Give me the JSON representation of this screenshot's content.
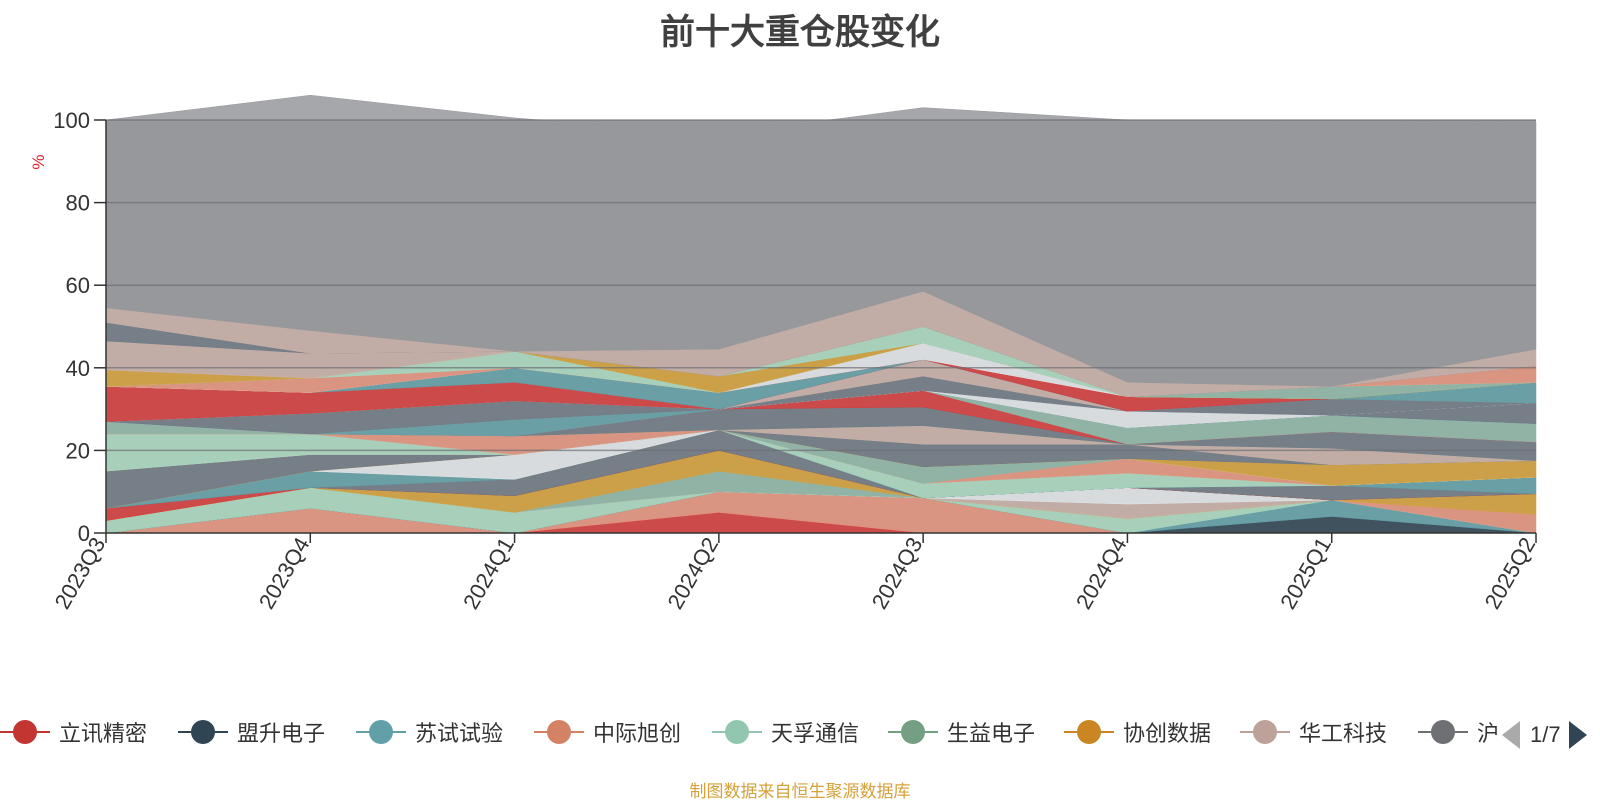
{
  "chart_data": {
    "type": "area",
    "stacked": true,
    "title": "前十大重仓股变化",
    "ylabel": "%",
    "ylim": [
      0,
      100
    ],
    "yticks": [
      0,
      20,
      40,
      60,
      80,
      100
    ],
    "grid": true,
    "categories": [
      "2023Q3",
      "2023Q4",
      "2024Q1",
      "2024Q2",
      "2024Q3",
      "2024Q4",
      "2025Q1",
      "2025Q2"
    ],
    "layers": [
      {
        "color": "#d63c3c",
        "values": [
          0,
          0,
          0,
          5,
          0,
          0,
          0,
          0
        ]
      },
      {
        "color": "#e4947c",
        "values": [
          0,
          6,
          0,
          5,
          8.5,
          0,
          0,
          0
        ]
      },
      {
        "color": "#2f4554",
        "values": [
          0,
          0,
          0,
          0,
          0,
          0,
          4,
          0
        ]
      },
      {
        "color": "#61a0a8",
        "values": [
          0,
          0,
          0,
          0,
          0,
          0,
          4,
          0
        ]
      },
      {
        "color": "#a9d8c0",
        "values": [
          3,
          5,
          5,
          0,
          0,
          3.5,
          0,
          0
        ]
      },
      {
        "color": "#e4947c",
        "values": [
          0,
          0,
          0,
          0,
          0,
          0,
          0,
          4.5
        ]
      },
      {
        "color": "#d4a13a",
        "values": [
          0,
          0,
          0,
          0,
          0,
          0,
          0,
          5
        ]
      },
      {
        "color": "#c9b0a8",
        "values": [
          0,
          0,
          0,
          0,
          0,
          3.5,
          0,
          0
        ]
      },
      {
        "color": "#e2e6ea",
        "values": [
          0,
          0,
          0,
          0,
          0,
          4,
          0,
          0
        ]
      },
      {
        "color": "#8fb7a8",
        "values": [
          0,
          0,
          0,
          5,
          0,
          0,
          0,
          0
        ]
      },
      {
        "color": "#d4a13a",
        "values": [
          0,
          0,
          4,
          5,
          0,
          0,
          0,
          0
        ]
      },
      {
        "color": "#d63c3c",
        "values": [
          3,
          0,
          0,
          0,
          0,
          0,
          0,
          0
        ]
      },
      {
        "color": "#707a85",
        "values": [
          0,
          0,
          4,
          5,
          0,
          0,
          3.5,
          0
        ]
      },
      {
        "color": "#61a0a8",
        "values": [
          0,
          4,
          0,
          0,
          0,
          0,
          0,
          4
        ]
      },
      {
        "color": "#a9d8c0",
        "values": [
          0,
          0,
          0,
          0,
          3.5,
          3.5,
          0,
          0
        ]
      },
      {
        "color": "#e4947c",
        "values": [
          0,
          0,
          0,
          0,
          0,
          3.5,
          0,
          0
        ]
      },
      {
        "color": "#8fb7a8",
        "values": [
          0,
          0,
          0,
          0,
          4,
          0,
          0,
          0
        ]
      },
      {
        "color": "#e2e6ea",
        "values": [
          0,
          0,
          6,
          0,
          0,
          0,
          0,
          0
        ]
      },
      {
        "color": "#d4a13a",
        "values": [
          0,
          0,
          0,
          0,
          0,
          0,
          5,
          4
        ]
      },
      {
        "color": "#707a85",
        "values": [
          9,
          4,
          0,
          0,
          5.5,
          3.5,
          0,
          0
        ]
      },
      {
        "color": "#c9b0a8",
        "values": [
          0,
          0,
          0,
          0,
          4.5,
          0,
          4,
          0
        ]
      },
      {
        "color": "#a9d8c0",
        "values": [
          9,
          5,
          0,
          0,
          0,
          0,
          0,
          0
        ]
      },
      {
        "color": "#e4947c",
        "values": [
          0,
          0,
          4.5,
          0,
          0,
          0,
          0,
          0
        ]
      },
      {
        "color": "#8fb7a8",
        "values": [
          3,
          0,
          0,
          0,
          0,
          0,
          0,
          0
        ]
      },
      {
        "color": "#707a85",
        "values": [
          0,
          0,
          0,
          5,
          4.5,
          0,
          4,
          4.5
        ]
      },
      {
        "color": "#d63c3c",
        "values": [
          0,
          0,
          0,
          0,
          4,
          0,
          0,
          0
        ]
      },
      {
        "color": "#8fb7a8",
        "values": [
          0,
          0,
          0,
          0,
          0,
          4,
          4,
          4.5
        ]
      },
      {
        "color": "#61a0a8",
        "values": [
          0,
          0,
          4,
          0,
          0,
          0,
          0,
          0
        ]
      },
      {
        "color": "#707a85",
        "values": [
          0,
          0,
          0,
          0,
          0,
          0,
          0,
          5
        ]
      },
      {
        "color": "#e2e6ea",
        "values": [
          0,
          0,
          0,
          0,
          0,
          4,
          0,
          0
        ]
      },
      {
        "color": "#707a85",
        "values": [
          0,
          0,
          0,
          0,
          3.5,
          0,
          4,
          0
        ]
      },
      {
        "color": "#707a85",
        "values": [
          0,
          5,
          4.5,
          0,
          0,
          0,
          0,
          0
        ]
      },
      {
        "color": "#c9b0a8",
        "values": [
          0,
          0,
          0,
          0,
          4,
          0,
          0,
          0
        ]
      },
      {
        "color": "#d63c3c",
        "values": [
          8.5,
          5,
          4.5,
          0,
          0,
          0,
          0,
          0
        ]
      },
      {
        "color": "#61a0a8",
        "values": [
          0,
          0,
          3.5,
          4,
          0,
          0,
          0,
          0
        ]
      },
      {
        "color": "#61a0a8",
        "values": [
          0,
          0,
          0,
          0,
          0,
          0,
          0,
          5
        ]
      },
      {
        "color": "#d63c3c",
        "values": [
          0,
          0,
          0,
          0,
          0,
          3.5,
          0,
          0
        ]
      },
      {
        "color": "#e2e6ea",
        "values": [
          0,
          0,
          0,
          0,
          4,
          0,
          0,
          0
        ]
      },
      {
        "color": "#e4947c",
        "values": [
          0,
          3.5,
          0,
          0,
          0,
          0,
          0,
          0
        ]
      },
      {
        "color": "#a9d8c0",
        "values": [
          0,
          0,
          4,
          0,
          0,
          0,
          0,
          0
        ]
      },
      {
        "color": "#d4a13a",
        "values": [
          4,
          0,
          0,
          4,
          0,
          0,
          0,
          0
        ]
      },
      {
        "color": "#8fb7a8",
        "values": [
          0,
          0,
          0,
          0,
          0,
          0,
          3,
          0
        ]
      },
      {
        "color": "#a9d8c0",
        "values": [
          0,
          0,
          0,
          0,
          4,
          0,
          0,
          0
        ]
      },
      {
        "color": "#e4947c",
        "values": [
          0,
          0,
          0,
          0,
          0,
          0,
          0,
          4
        ]
      },
      {
        "color": "#c9b0a8",
        "values": [
          7,
          6,
          0,
          0,
          0,
          0,
          0,
          0
        ]
      },
      {
        "color": "#707a85",
        "values": [
          4.5,
          0,
          0,
          0,
          0,
          0,
          0,
          0
        ]
      },
      {
        "color": "#c9b0a8",
        "values": [
          3.5,
          5.5,
          0,
          6.5,
          8.5,
          3.5,
          0,
          4
        ]
      },
      {
        "color": "#97989c",
        "values": [
          45.5,
          57,
          56.5,
          52,
          44.5,
          63.5,
          62,
          55
        ]
      }
    ]
  },
  "legend": {
    "items": [
      {
        "label": "立讯精密",
        "color": "#c23531"
      },
      {
        "label": "盟升电子",
        "color": "#2f4554"
      },
      {
        "label": "苏试试验",
        "color": "#61a0a8"
      },
      {
        "label": "中际旭创",
        "color": "#d48265"
      },
      {
        "label": "天孚通信",
        "color": "#91c7ae"
      },
      {
        "label": "生益电子",
        "color": "#749f83"
      },
      {
        "label": "协创数据",
        "color": "#ca8622"
      },
      {
        "label": "华工科技",
        "color": "#bda29a"
      },
      {
        "label": "沪",
        "color": "#6e7074"
      }
    ],
    "page_indicator": "1/7"
  },
  "footer": "制图数据来自恒生聚源数据库"
}
